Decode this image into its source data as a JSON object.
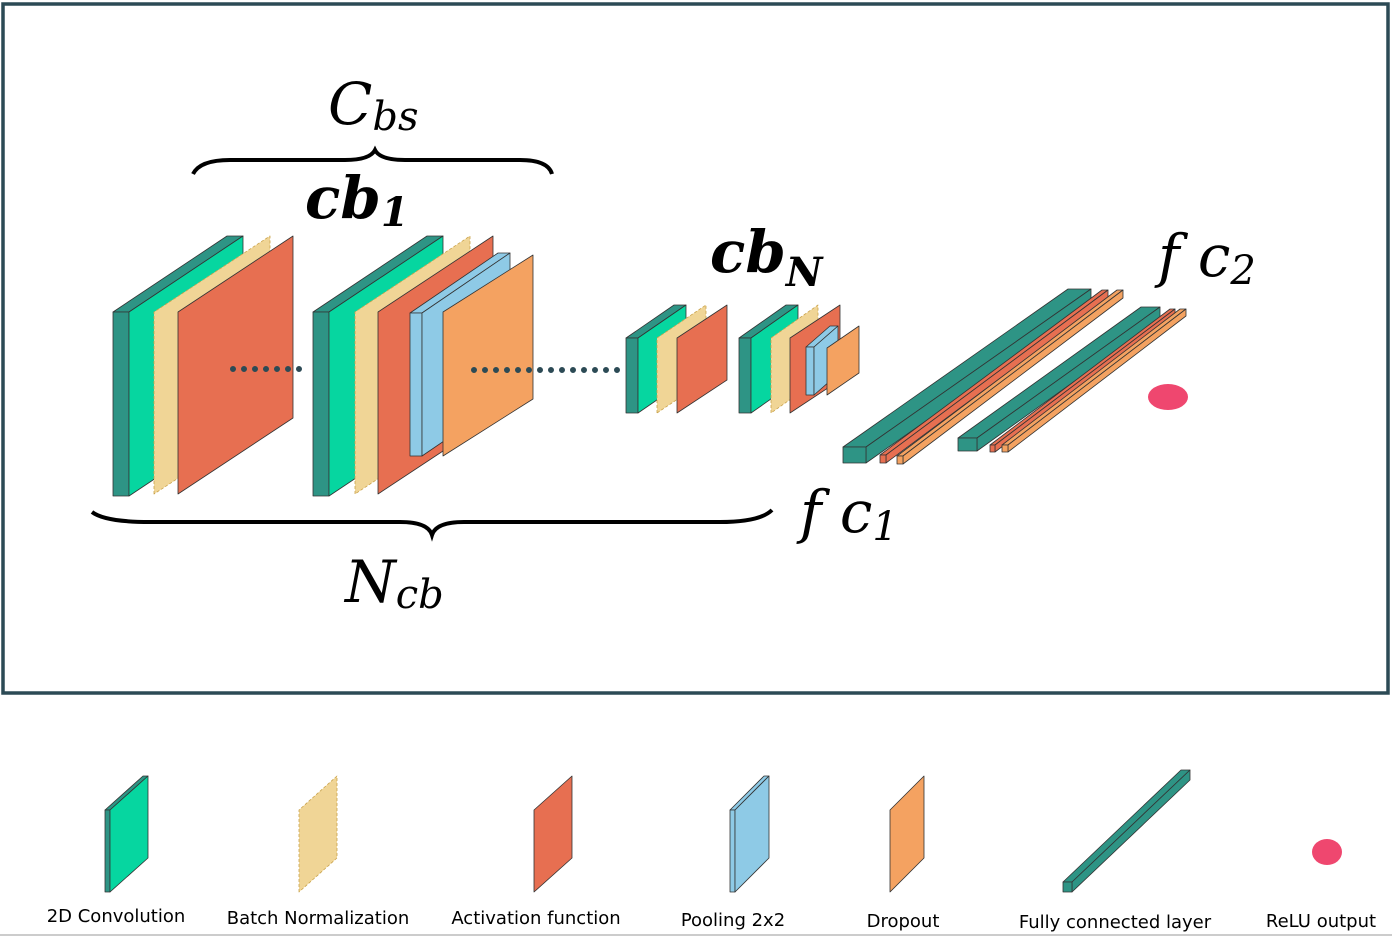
{
  "diagram": {
    "labels": [
      {
        "main": "C",
        "sub": "bs"
      },
      {
        "main": "cb",
        "sub": "1"
      },
      {
        "main": "cb",
        "sub": "N"
      },
      {
        "main": "f c",
        "sub": "2"
      },
      {
        "main": "f c",
        "sub": "1"
      },
      {
        "main": "N",
        "sub": "cb"
      }
    ],
    "legend": [
      "2D Convolution",
      "Batch Normalization",
      "Activation function",
      "Pooling 2x2",
      "Dropout",
      "Fully connected layer",
      "ReLU output"
    ]
  }
}
